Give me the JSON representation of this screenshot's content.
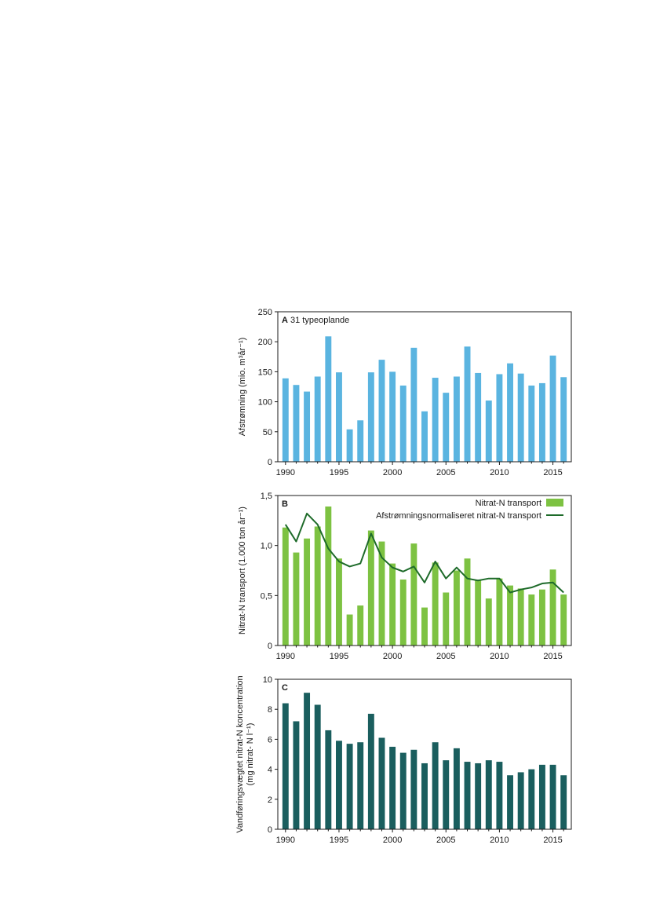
{
  "chart_data": [
    {
      "type": "bar",
      "panel": "A",
      "title": "31 typeoplande",
      "ylabel": "Afstrømning (mio. m³år⁻¹)",
      "ylabel_line2": "",
      "ylim": [
        0,
        250
      ],
      "yticks": [
        0,
        50,
        100,
        150,
        200,
        250
      ],
      "ytick_labels": [
        "0",
        "50",
        "100",
        "150",
        "200",
        "250"
      ],
      "xtick_labels": [
        "1990",
        "1995",
        "2000",
        "2005",
        "2010",
        "2015"
      ],
      "categories": [
        "1990",
        "1991",
        "1992",
        "1993",
        "1994",
        "1995",
        "1996",
        "1997",
        "1998",
        "1999",
        "2000",
        "2001",
        "2002",
        "2003",
        "2004",
        "2005",
        "2006",
        "2007",
        "2008",
        "2009",
        "2010",
        "2011",
        "2012",
        "2013",
        "2014",
        "2015",
        "2016"
      ],
      "bar_color": "#5ab4e0",
      "values": [
        139,
        128,
        117,
        142,
        209,
        149,
        54,
        69,
        149,
        170,
        150,
        127,
        190,
        84,
        140,
        115,
        142,
        192,
        148,
        102,
        146,
        164,
        147,
        127,
        131,
        177,
        141
      ]
    },
    {
      "type": "bar",
      "panel": "B",
      "title": "",
      "ylabel": "Nitrat-N transport (1.000 ton år⁻¹)",
      "ylabel_line2": "",
      "ylim": [
        0,
        1.5
      ],
      "yticks": [
        0,
        0.5,
        1.0,
        1.5
      ],
      "ytick_labels": [
        "0",
        "0,5",
        "1,0",
        "1,5"
      ],
      "xtick_labels": [
        "1990",
        "1995",
        "2000",
        "2005",
        "2010",
        "2015"
      ],
      "categories": [
        "1990",
        "1991",
        "1992",
        "1993",
        "1994",
        "1995",
        "1996",
        "1997",
        "1998",
        "1999",
        "2000",
        "2001",
        "2002",
        "2003",
        "2004",
        "2005",
        "2006",
        "2007",
        "2008",
        "2009",
        "2010",
        "2011",
        "2012",
        "2013",
        "2014",
        "2015",
        "2016"
      ],
      "bar_color": "#7dc242",
      "line_color": "#1e6b2a",
      "values": [
        1.18,
        0.93,
        1.07,
        1.19,
        1.39,
        0.87,
        0.31,
        0.4,
        1.15,
        1.04,
        0.82,
        0.66,
        1.02,
        0.38,
        0.83,
        0.53,
        0.75,
        0.87,
        0.66,
        0.47,
        0.67,
        0.6,
        0.57,
        0.51,
        0.56,
        0.76,
        0.51
      ],
      "line_values": [
        1.21,
        1.04,
        1.32,
        1.21,
        0.97,
        0.84,
        0.79,
        0.82,
        1.12,
        0.88,
        0.78,
        0.74,
        0.79,
        0.63,
        0.84,
        0.67,
        0.78,
        0.67,
        0.65,
        0.67,
        0.67,
        0.53,
        0.56,
        0.58,
        0.62,
        0.63,
        0.53
      ],
      "legend": [
        {
          "label": "Nitrat-N transport",
          "kind": "bar"
        },
        {
          "label": "Afstrømningsnormaliseret nitrat-N transport",
          "kind": "line"
        }
      ]
    },
    {
      "type": "bar",
      "panel": "C",
      "title": "",
      "ylabel": "Vandføringsvægtet nitrat-N koncentration",
      "ylabel_line2": "(mg nitrat- N l⁻¹)",
      "ylim": [
        0,
        10
      ],
      "yticks": [
        0,
        2,
        4,
        6,
        8,
        10
      ],
      "ytick_labels": [
        "0",
        "2",
        "4",
        "6",
        "8",
        "10"
      ],
      "xtick_labels": [
        "1990",
        "1995",
        "2000",
        "2005",
        "2010",
        "2015"
      ],
      "categories": [
        "1990",
        "1991",
        "1992",
        "1993",
        "1994",
        "1995",
        "1996",
        "1997",
        "1998",
        "1999",
        "2000",
        "2001",
        "2002",
        "2003",
        "2004",
        "2005",
        "2006",
        "2007",
        "2008",
        "2009",
        "2010",
        "2011",
        "2012",
        "2013",
        "2014",
        "2015",
        "2016"
      ],
      "bar_color": "#1a5e5e",
      "values": [
        8.4,
        7.2,
        9.1,
        8.3,
        6.6,
        5.9,
        5.7,
        5.8,
        7.7,
        6.1,
        5.5,
        5.1,
        5.3,
        4.4,
        5.8,
        4.6,
        5.4,
        4.5,
        4.4,
        4.6,
        4.5,
        3.6,
        3.8,
        4.0,
        4.3,
        4.3,
        3.6
      ]
    }
  ]
}
